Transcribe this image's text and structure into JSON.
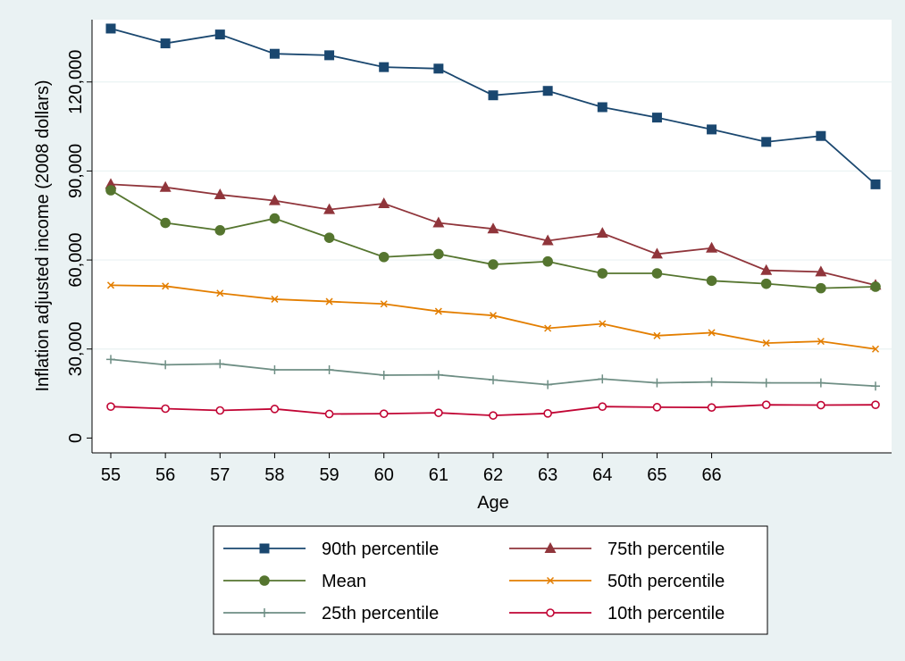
{
  "chart_data": {
    "type": "line",
    "xlabel": "Age",
    "ylabel": "Inflation adjusted income (2008 dollars)",
    "x": [
      55,
      56,
      57,
      58,
      59,
      60,
      61,
      62,
      63,
      64,
      65,
      66,
      67,
      68,
      69
    ],
    "x_tick_labels": [
      "55",
      "56",
      "57",
      "58",
      "59",
      "60",
      "61",
      "62",
      "63",
      "64",
      "65",
      "66"
    ],
    "yticks": [
      0,
      30000,
      60000,
      90000,
      120000
    ],
    "ytick_labels": [
      "0",
      "30,000",
      "60,000",
      "90,000",
      "120,000"
    ],
    "xlim": [
      55,
      69.25
    ],
    "ylim": [
      -5000,
      141000
    ],
    "grid": true,
    "legend_position": "bottom",
    "series": [
      {
        "name": "90th percentile",
        "color": "#1a476f",
        "marker": "square",
        "values": [
          138000,
          133000,
          136000,
          129500,
          129000,
          125000,
          124500,
          115500,
          117000,
          111500,
          108000,
          104000,
          99800,
          101800,
          85500
        ]
      },
      {
        "name": "75th percentile",
        "color": "#90353b",
        "marker": "triangle",
        "values": [
          85500,
          84500,
          82000,
          80000,
          77000,
          79000,
          72500,
          70500,
          66500,
          69000,
          62000,
          64000,
          56500,
          56000,
          51500
        ]
      },
      {
        "name": "Mean",
        "color": "#55752f",
        "marker": "circle",
        "values": [
          83500,
          72500,
          70000,
          74000,
          67500,
          61000,
          62000,
          58500,
          59500,
          55500,
          55500,
          53000,
          52000,
          50500,
          51000
        ]
      },
      {
        "name": "50th percentile",
        "color": "#e37e00",
        "marker": "x",
        "values": [
          51500,
          51200,
          48800,
          46800,
          46000,
          45200,
          42700,
          41300,
          37000,
          38500,
          34500,
          35500,
          32000,
          32600,
          30000
        ]
      },
      {
        "name": "25th percentile",
        "color": "#6e8e84",
        "marker": "plus",
        "values": [
          26500,
          24700,
          25000,
          23000,
          23000,
          21200,
          21300,
          19600,
          18000,
          19900,
          18600,
          18900,
          18600,
          18600,
          17500
        ]
      },
      {
        "name": "10th percentile",
        "color": "#c10534",
        "marker": "hollow-circle",
        "values": [
          10600,
          9900,
          9300,
          9800,
          8100,
          8200,
          8500,
          7600,
          8300,
          10600,
          10400,
          10300,
          11200,
          11100,
          11200
        ]
      }
    ]
  }
}
